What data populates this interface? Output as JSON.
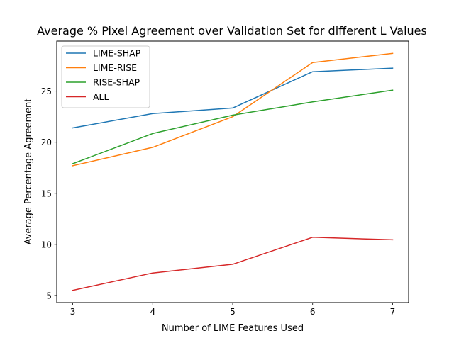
{
  "chart_data": {
    "type": "line",
    "title": "Average % Pixel Agreement over Validation Set for different L Values",
    "xlabel": "Number of LIME Features Used",
    "ylabel": "Average Percentage Agreement",
    "x": [
      3,
      4,
      5,
      6,
      7
    ],
    "xlim": [
      2.8,
      7.2
    ],
    "ylim": [
      4.3,
      29.9
    ],
    "xticks": [
      3,
      4,
      5,
      6,
      7
    ],
    "yticks": [
      5,
      10,
      15,
      20,
      25
    ],
    "grid": false,
    "legend_position": "top-left",
    "series": [
      {
        "name": "LIME-SHAP",
        "color": "#1f77b4",
        "values": [
          21.4,
          22.8,
          23.35,
          26.9,
          27.25
        ]
      },
      {
        "name": "LIME-RISE",
        "color": "#ff7f0e",
        "values": [
          17.7,
          19.5,
          22.5,
          27.8,
          28.7
        ]
      },
      {
        "name": "RISE-SHAP",
        "color": "#2ca02c",
        "values": [
          17.9,
          20.85,
          22.65,
          23.95,
          25.1
        ]
      },
      {
        "name": "ALL",
        "color": "#d62728",
        "values": [
          5.5,
          7.2,
          8.05,
          10.7,
          10.45
        ]
      }
    ]
  }
}
